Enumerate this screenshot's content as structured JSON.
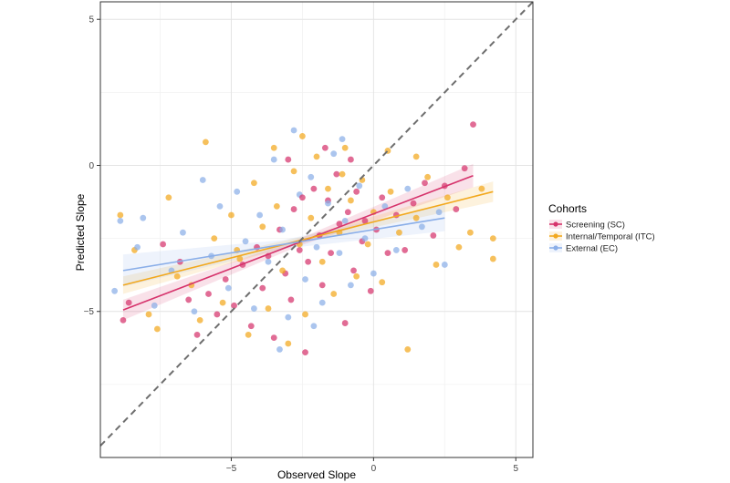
{
  "chart_data": {
    "type": "scatter",
    "title": "",
    "xlabel": "Observed Slope",
    "ylabel": "Predicted Slope",
    "xlim": [
      -9.6,
      5.6
    ],
    "ylim": [
      -10.0,
      5.6
    ],
    "x_ticks": [
      -5,
      0,
      5
    ],
    "y_ticks": [
      5,
      0,
      -5
    ],
    "x_tick_labels": [
      "−5",
      "0",
      "5"
    ],
    "y_tick_labels": [
      "5",
      "0",
      "−5"
    ],
    "grid": true,
    "identity_line": true,
    "legend": {
      "title": "Cohorts",
      "placement": "right",
      "entries": [
        "Screening (SC)",
        "Internal/Temporal (ITC)",
        "External (EC)"
      ]
    },
    "series": [
      {
        "name": "Screening (SC)",
        "color": "#d6336c",
        "fit": {
          "x": [
            -8.8,
            3.5
          ],
          "y": [
            -4.95,
            -0.35
          ]
        },
        "ribbon_halfwidth": {
          "at_min": 0.35,
          "at_center": 0.12,
          "at_max": 0.4
        },
        "points": [
          [
            -8.8,
            -5.3
          ],
          [
            -8.6,
            -4.7
          ],
          [
            -6.5,
            -4.6
          ],
          [
            -6.2,
            -5.8
          ],
          [
            -5.8,
            -4.4
          ],
          [
            -5.5,
            -5.1
          ],
          [
            -5.2,
            -3.9
          ],
          [
            -4.9,
            -4.8
          ],
          [
            -4.6,
            -3.4
          ],
          [
            -4.3,
            -5.5
          ],
          [
            -4.1,
            -2.8
          ],
          [
            -3.9,
            -4.2
          ],
          [
            -3.7,
            -3.1
          ],
          [
            -3.5,
            -5.9
          ],
          [
            -3.3,
            -2.2
          ],
          [
            -3.1,
            -3.7
          ],
          [
            -2.9,
            -4.6
          ],
          [
            -2.8,
            -1.5
          ],
          [
            -2.6,
            -2.9
          ],
          [
            -2.4,
            -6.4
          ],
          [
            -2.3,
            -3.3
          ],
          [
            -2.1,
            -0.8
          ],
          [
            -1.9,
            -2.4
          ],
          [
            -1.8,
            -4.1
          ],
          [
            -1.6,
            -1.2
          ],
          [
            -1.5,
            -3.0
          ],
          [
            -1.3,
            -0.3
          ],
          [
            -1.2,
            -2.0
          ],
          [
            -1.0,
            -5.4
          ],
          [
            -0.9,
            -1.6
          ],
          [
            -0.7,
            -3.6
          ],
          [
            -0.6,
            -0.9
          ],
          [
            -0.4,
            -2.6
          ],
          [
            -0.3,
            -1.9
          ],
          [
            -0.1,
            -4.3
          ],
          [
            0.1,
            -2.2
          ],
          [
            0.3,
            -1.1
          ],
          [
            0.5,
            -3.0
          ],
          [
            0.8,
            -1.7
          ],
          [
            1.1,
            -2.9
          ],
          [
            1.4,
            -1.3
          ],
          [
            1.8,
            -0.6
          ],
          [
            2.1,
            -2.4
          ],
          [
            2.5,
            -0.7
          ],
          [
            2.9,
            -1.5
          ],
          [
            3.2,
            -0.1
          ],
          [
            3.5,
            1.4
          ],
          [
            -7.4,
            -2.7
          ],
          [
            -6.8,
            -3.3
          ],
          [
            -3.0,
            0.2
          ],
          [
            -2.5,
            -1.1
          ],
          [
            -1.7,
            0.6
          ],
          [
            -0.8,
            0.2
          ]
        ]
      },
      {
        "name": "Internal/Temporal (ITC)",
        "color": "#f2a81d",
        "fit": {
          "x": [
            -8.8,
            4.2
          ],
          "y": [
            -4.1,
            -0.9
          ]
        },
        "ribbon_halfwidth": {
          "at_min": 0.3,
          "at_center": 0.1,
          "at_max": 0.35
        },
        "points": [
          [
            -8.9,
            -1.7
          ],
          [
            -8.4,
            -2.9
          ],
          [
            -7.9,
            -5.1
          ],
          [
            -7.6,
            -5.6
          ],
          [
            -7.2,
            -1.1
          ],
          [
            -6.9,
            -3.8
          ],
          [
            -6.4,
            -4.1
          ],
          [
            -6.1,
            -5.3
          ],
          [
            -5.9,
            0.8
          ],
          [
            -5.6,
            -2.5
          ],
          [
            -5.3,
            -4.7
          ],
          [
            -5.0,
            -1.7
          ],
          [
            -4.7,
            -3.2
          ],
          [
            -4.4,
            -5.8
          ],
          [
            -4.2,
            -0.6
          ],
          [
            -3.9,
            -2.1
          ],
          [
            -3.7,
            -4.9
          ],
          [
            -3.4,
            -1.4
          ],
          [
            -3.2,
            -3.6
          ],
          [
            -3.0,
            -6.1
          ],
          [
            -2.8,
            -0.2
          ],
          [
            -2.6,
            -2.7
          ],
          [
            -2.4,
            -5.1
          ],
          [
            -2.2,
            -1.8
          ],
          [
            -2.0,
            0.3
          ],
          [
            -1.8,
            -3.3
          ],
          [
            -1.6,
            -0.8
          ],
          [
            -1.4,
            -4.4
          ],
          [
            -1.2,
            -2.3
          ],
          [
            -1.0,
            0.6
          ],
          [
            -0.8,
            -1.2
          ],
          [
            -0.6,
            -3.8
          ],
          [
            -0.4,
            -0.5
          ],
          [
            -0.2,
            -2.7
          ],
          [
            0.0,
            -1.6
          ],
          [
            0.3,
            -4.0
          ],
          [
            0.6,
            -0.9
          ],
          [
            0.9,
            -2.3
          ],
          [
            1.2,
            -6.3
          ],
          [
            1.5,
            -1.8
          ],
          [
            1.9,
            -0.4
          ],
          [
            2.2,
            -3.4
          ],
          [
            2.6,
            -1.1
          ],
          [
            3.0,
            -2.8
          ],
          [
            3.4,
            -2.3
          ],
          [
            3.8,
            -0.8
          ],
          [
            4.2,
            -2.5
          ],
          [
            4.2,
            -3.2
          ],
          [
            -3.5,
            0.6
          ],
          [
            -2.5,
            1.0
          ],
          [
            -1.1,
            -0.3
          ],
          [
            0.5,
            0.5
          ],
          [
            1.5,
            0.3
          ],
          [
            -4.8,
            -2.9
          ]
        ]
      },
      {
        "name": "External (EC)",
        "color": "#8aaee8",
        "fit": {
          "x": [
            -8.8,
            2.5
          ],
          "y": [
            -3.6,
            -1.8
          ]
        },
        "ribbon_halfwidth": {
          "at_min": 0.55,
          "at_center": 0.15,
          "at_max": 0.45
        },
        "points": [
          [
            -9.1,
            -4.3
          ],
          [
            -8.9,
            -1.9
          ],
          [
            -8.3,
            -2.8
          ],
          [
            -8.1,
            -1.8
          ],
          [
            -7.7,
            -4.8
          ],
          [
            -7.1,
            -3.6
          ],
          [
            -6.7,
            -2.3
          ],
          [
            -6.3,
            -5.0
          ],
          [
            -6.0,
            -0.5
          ],
          [
            -5.7,
            -3.1
          ],
          [
            -5.4,
            -1.4
          ],
          [
            -5.1,
            -4.2
          ],
          [
            -4.8,
            -0.9
          ],
          [
            -4.5,
            -2.6
          ],
          [
            -4.2,
            -4.9
          ],
          [
            -4.0,
            -1.7
          ],
          [
            -3.7,
            -3.3
          ],
          [
            -3.5,
            0.2
          ],
          [
            -3.2,
            -2.2
          ],
          [
            -3.0,
            -5.2
          ],
          [
            -2.8,
            1.2
          ],
          [
            -2.6,
            -1.0
          ],
          [
            -2.4,
            -3.9
          ],
          [
            -2.2,
            -0.4
          ],
          [
            -2.0,
            -2.8
          ],
          [
            -1.8,
            -4.7
          ],
          [
            -1.6,
            -1.3
          ],
          [
            -1.4,
            0.4
          ],
          [
            -1.2,
            -3.0
          ],
          [
            -1.0,
            -1.9
          ],
          [
            -0.8,
            -4.1
          ],
          [
            -0.5,
            -0.7
          ],
          [
            -0.3,
            -2.5
          ],
          [
            0.0,
            -3.7
          ],
          [
            0.4,
            -1.4
          ],
          [
            0.8,
            -2.9
          ],
          [
            1.2,
            -0.8
          ],
          [
            1.7,
            -2.1
          ],
          [
            2.3,
            -1.6
          ],
          [
            2.5,
            -3.4
          ],
          [
            -3.3,
            -6.3
          ],
          [
            -2.1,
            -5.5
          ],
          [
            -1.1,
            0.9
          ]
        ]
      }
    ]
  }
}
